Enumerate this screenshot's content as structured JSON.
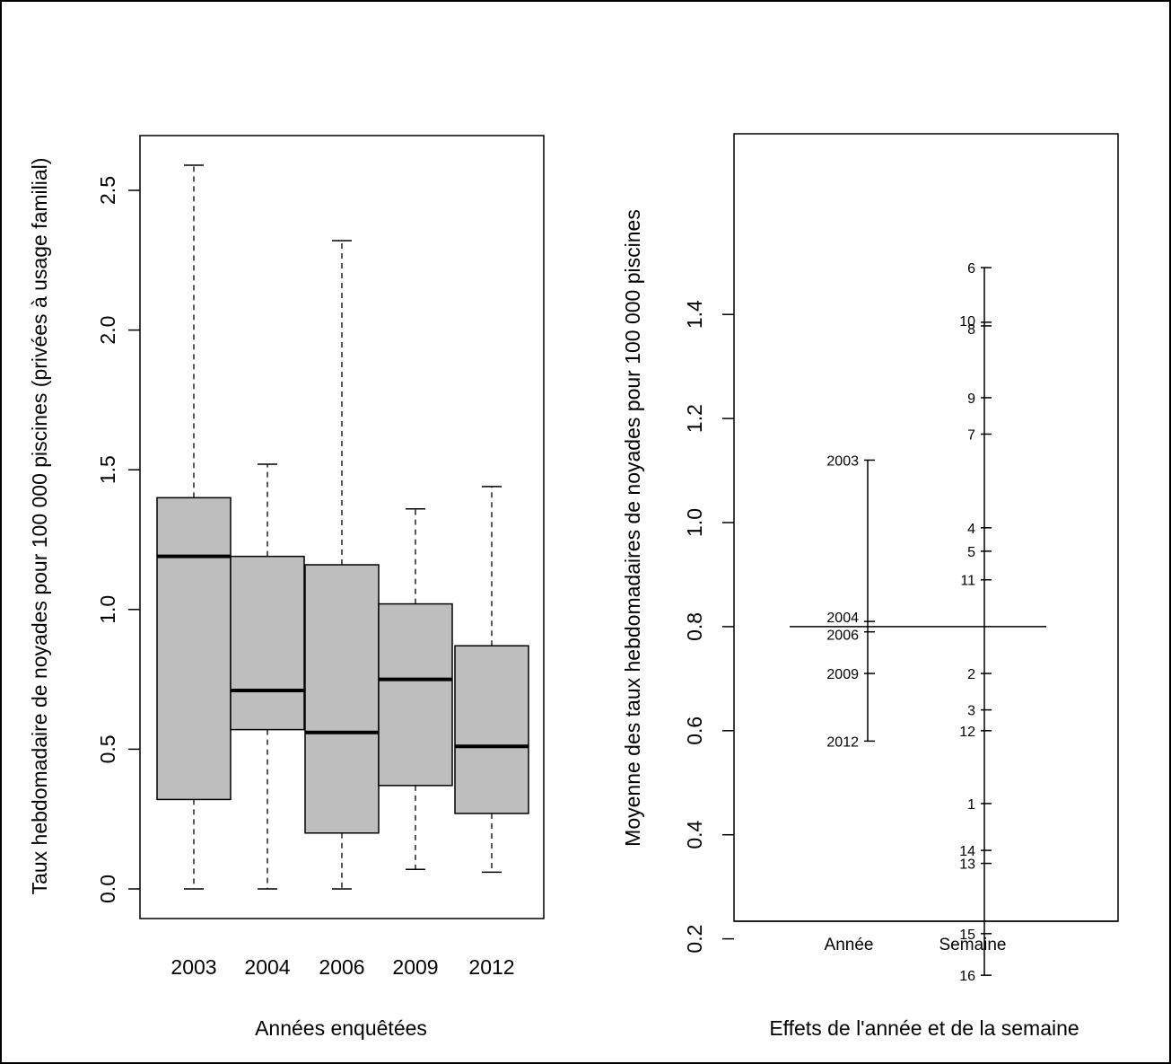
{
  "chart_data": [
    {
      "type": "box",
      "xlabel": "Années enquêtées",
      "ylabel": "Taux hebdomadaire de noyades pour 100 000 piscines (privées à usage familial)",
      "ylim": [
        -0.1,
        2.78
      ],
      "yticks": [
        "0.0",
        "0.5",
        "1.0",
        "1.5",
        "2.0",
        "2.5"
      ],
      "yticks_values": [
        0,
        0.5,
        1.0,
        1.5,
        2.0,
        2.5
      ],
      "box_color": "#bebebe",
      "categories": [
        "2003",
        "2004",
        "2006",
        "2009",
        "2012"
      ],
      "boxes": [
        {
          "category": "2003",
          "min": 0.0,
          "q1": 0.32,
          "median": 1.19,
          "q3": 1.4,
          "max": 2.59
        },
        {
          "category": "2004",
          "min": 0.0,
          "q1": 0.57,
          "median": 0.71,
          "q3": 1.19,
          "max": 1.52
        },
        {
          "category": "2006",
          "min": 0.0,
          "q1": 0.2,
          "median": 0.56,
          "q3": 1.16,
          "max": 2.32
        },
        {
          "category": "2009",
          "min": 0.07,
          "q1": 0.37,
          "median": 0.75,
          "q3": 1.02,
          "max": 1.36
        },
        {
          "category": "2012",
          "min": 0.06,
          "q1": 0.27,
          "median": 0.51,
          "q3": 0.87,
          "max": 1.44
        }
      ]
    },
    {
      "type": "design-plot",
      "xlabel": "Effets de l'année et de la semaine",
      "ylabel": "Moyenne des taux hebdomadaires de noyades pour 100 000 piscines",
      "ylim": [
        0.04,
        1.56
      ],
      "yticks": [
        "0.2",
        "0.4",
        "0.6",
        "0.8",
        "1.0",
        "1.2",
        "1.4"
      ],
      "yticks_values": [
        0.2,
        0.4,
        0.6,
        0.8,
        1.0,
        1.2,
        1.4
      ],
      "grand_mean": 0.8,
      "groups": [
        {
          "name": "Année",
          "levels": [
            {
              "label": "2003",
              "value": 1.12
            },
            {
              "label": "2004",
              "value": 0.81
            },
            {
              "label": "2006",
              "value": 0.79
            },
            {
              "label": "2009",
              "value": 0.71
            },
            {
              "label": "2012",
              "value": 0.58
            }
          ]
        },
        {
          "name": "Semaine",
          "levels": [
            {
              "label": "6",
              "value": 1.49
            },
            {
              "label": "10",
              "value": 1.385
            },
            {
              "label": "8",
              "value": 1.378
            },
            {
              "label": "9",
              "value": 1.24
            },
            {
              "label": "7",
              "value": 1.17
            },
            {
              "label": "4",
              "value": 0.99
            },
            {
              "label": "5",
              "value": 0.945
            },
            {
              "label": "11",
              "value": 0.89
            },
            {
              "label": "2",
              "value": 0.71
            },
            {
              "label": "3",
              "value": 0.64
            },
            {
              "label": "12",
              "value": 0.6
            },
            {
              "label": "1",
              "value": 0.46
            },
            {
              "label": "14",
              "value": 0.37
            },
            {
              "label": "13",
              "value": 0.345
            },
            {
              "label": "15",
              "value": 0.21
            },
            {
              "label": "16",
              "value": 0.13
            }
          ]
        }
      ]
    }
  ]
}
